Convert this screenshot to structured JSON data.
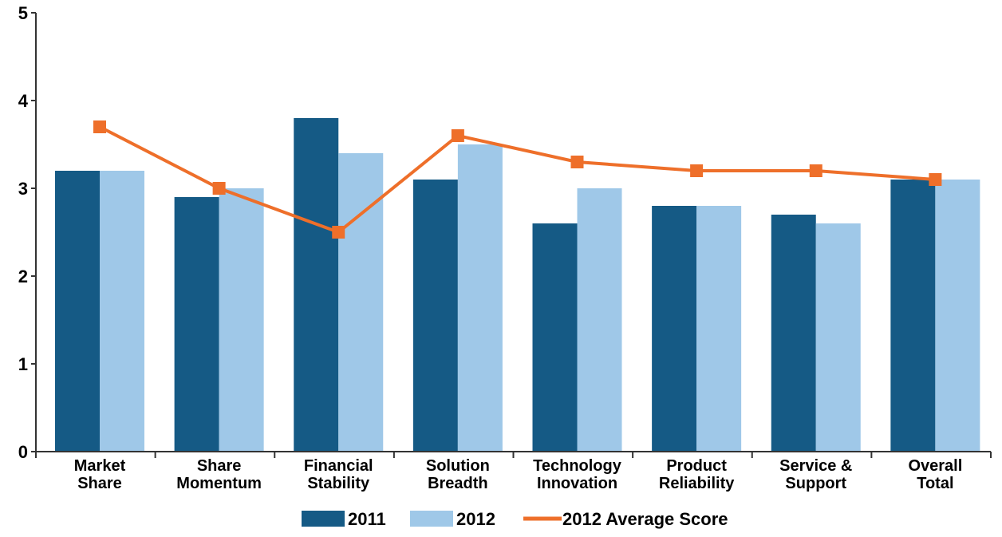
{
  "chart_data": {
    "type": "bar",
    "categories": [
      [
        "Market",
        "Share"
      ],
      [
        "Share",
        "Momentum"
      ],
      [
        "Financial",
        "Stability"
      ],
      [
        "Solution",
        "Breadth"
      ],
      [
        "Technology",
        "Innovation"
      ],
      [
        "Product",
        "Reliability"
      ],
      [
        "Service &",
        "Support"
      ],
      [
        "Overall",
        "Total"
      ]
    ],
    "series": [
      {
        "name": "2011",
        "kind": "bar",
        "color": "#155a85",
        "values": [
          3.2,
          2.9,
          3.8,
          3.1,
          2.6,
          2.8,
          2.7,
          3.1
        ]
      },
      {
        "name": "2012",
        "kind": "bar",
        "color": "#9fc8e8",
        "values": [
          3.2,
          3.0,
          3.4,
          3.5,
          3.0,
          2.8,
          2.6,
          3.1
        ]
      },
      {
        "name": "2012 Average Score",
        "kind": "line",
        "color": "#ee6f2a",
        "values": [
          3.7,
          3.0,
          2.5,
          3.6,
          3.3,
          3.2,
          3.2,
          3.1
        ]
      }
    ],
    "ylim": [
      0,
      5
    ],
    "yticks": [
      0,
      1,
      2,
      3,
      4,
      5
    ],
    "title": "",
    "xlabel": "",
    "ylabel": "",
    "grid": false,
    "legend_position": "bottom"
  }
}
